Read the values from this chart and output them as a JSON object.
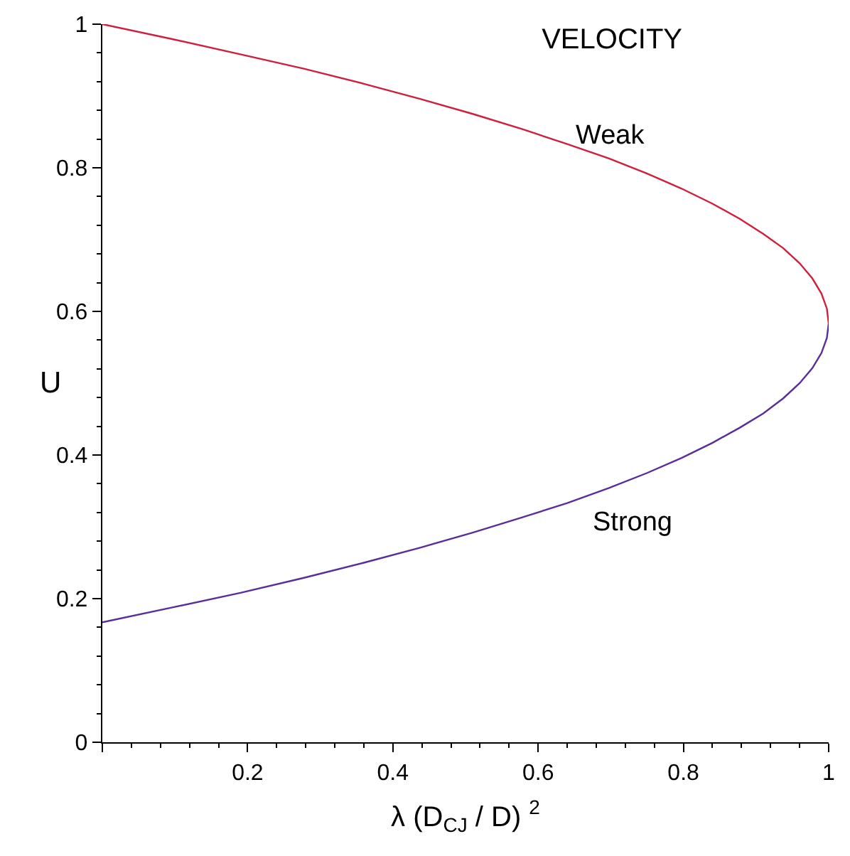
{
  "chart_data": {
    "type": "line",
    "title": "VELOCITY",
    "xlabel": "λ (D$_{CJ}$ / D) $^{2}$",
    "ylabel": "U",
    "series": [
      {
        "color": "#d01f3c",
        "x": [
          0,
          0.0975,
          0.19,
          0.2775,
          0.36,
          0.4375,
          0.51,
          0.5775,
          0.64,
          0.6975,
          0.75,
          0.7975,
          0.84,
          0.8775,
          0.91,
          0.9375,
          0.96,
          0.9775,
          0.99,
          0.9975,
          1
        ],
        "values": [
          1,
          0.979,
          0.958,
          0.938,
          0.917,
          0.896,
          0.875,
          0.854,
          0.833,
          0.813,
          0.792,
          0.771,
          0.75,
          0.729,
          0.708,
          0.688,
          0.667,
          0.646,
          0.625,
          0.604,
          0.583
        ]
      },
      {
        "color": "#5a2d9c",
        "x": [
          0,
          0.0975,
          0.19,
          0.2775,
          0.36,
          0.4375,
          0.51,
          0.5775,
          0.64,
          0.6975,
          0.75,
          0.7975,
          0.84,
          0.8775,
          0.91,
          0.9375,
          0.96,
          0.9775,
          0.99,
          0.9975,
          1
        ],
        "values": [
          0.167,
          0.188,
          0.208,
          0.229,
          0.25,
          0.271,
          0.292,
          0.313,
          0.333,
          0.354,
          0.375,
          0.396,
          0.417,
          0.438,
          0.458,
          0.479,
          0.5,
          0.521,
          0.542,
          0.563,
          0.583
        ]
      }
    ],
    "annotations": [
      "Weak",
      "Strong"
    ],
    "xlim": [
      0,
      1
    ],
    "ylim": [
      0,
      1
    ],
    "xticks": [
      {
        "value": 0,
        "label": null
      },
      0.2,
      0.4,
      0.6,
      0.8,
      1
    ],
    "yticks": [
      0,
      0.2,
      0.4,
      0.6,
      0.8,
      1
    ],
    "marker": "none",
    "line_style": "solid"
  }
}
